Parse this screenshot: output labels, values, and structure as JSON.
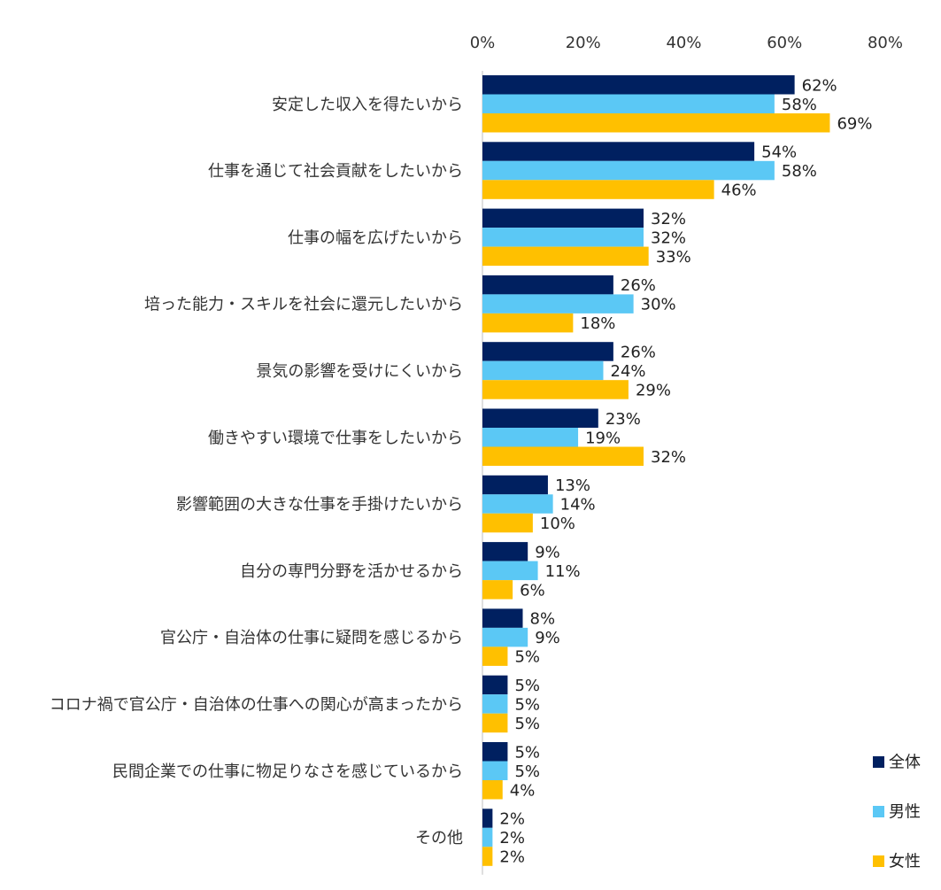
{
  "chart_data": {
    "type": "bar",
    "orientation": "horizontal",
    "categories": [
      "安定した収入を得たいから",
      "仕事を通じて社会貢献をしたいから",
      "仕事の幅を広げたいから",
      "培った能力・スキルを社会に還元したいから",
      "景気の影響を受けにくいから",
      "働きやすい環境で仕事をしたいから",
      "影響範囲の大きな仕事を手掛けたいから",
      "自分の専門分野を活かせるから",
      "官公庁・自治体の仕事に疑問を感じるから",
      "コロナ禍で官公庁・自治体の仕事への関心が高まったから",
      "民間企業での仕事に物足りなさを感じているから",
      "その他"
    ],
    "series": [
      {
        "name": "全体",
        "color": "#002060",
        "values": [
          62,
          54,
          32,
          26,
          26,
          23,
          13,
          9,
          8,
          5,
          5,
          2
        ]
      },
      {
        "name": "男性",
        "color": "#5BC8F5",
        "values": [
          58,
          58,
          32,
          30,
          24,
          19,
          14,
          11,
          9,
          5,
          5,
          2
        ]
      },
      {
        "name": "女性",
        "color": "#FFC000",
        "values": [
          69,
          46,
          33,
          18,
          29,
          32,
          10,
          6,
          5,
          5,
          4,
          2
        ]
      }
    ],
    "xlim": [
      0,
      80
    ],
    "xticks": [
      "0%",
      "20%",
      "40%",
      "60%",
      "80%"
    ],
    "xtick_values": [
      0,
      20,
      40,
      60,
      80
    ],
    "value_suffix": "%",
    "axis_position": "top",
    "grid": false,
    "legend_position": "bottom-right",
    "title": "",
    "xlabel": "",
    "ylabel": ""
  }
}
